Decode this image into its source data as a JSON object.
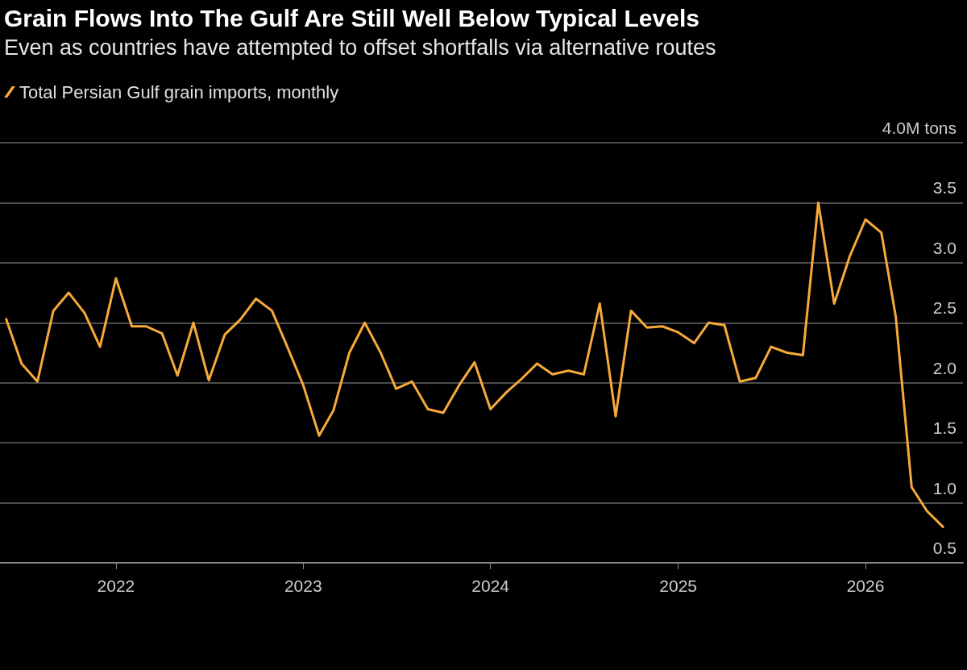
{
  "chart_data": {
    "type": "line",
    "title": "Grain Flows Into The Gulf Are Still Well Below Typical Levels",
    "subtitle": "Even as countries have attempted to offset shortfalls via alternative routes",
    "x": [
      "2021-06",
      "2021-07",
      "2021-08",
      "2021-09",
      "2021-10",
      "2021-11",
      "2021-12",
      "2022-01",
      "2022-02",
      "2022-03",
      "2022-04",
      "2022-05",
      "2022-06",
      "2022-07",
      "2022-08",
      "2022-09",
      "2022-10",
      "2022-11",
      "2022-12",
      "2023-01",
      "2023-02",
      "2023-03",
      "2023-04",
      "2023-05",
      "2023-06",
      "2023-07",
      "2023-08",
      "2023-09",
      "2023-10",
      "2023-11",
      "2023-12",
      "2024-01",
      "2024-02",
      "2024-03",
      "2024-04",
      "2024-05",
      "2024-06",
      "2024-07",
      "2024-08",
      "2024-09",
      "2024-10",
      "2024-11",
      "2024-12",
      "2025-01",
      "2025-02",
      "2025-03",
      "2025-04",
      "2025-05",
      "2025-06",
      "2025-07",
      "2025-08",
      "2025-09",
      "2025-10",
      "2025-11",
      "2025-12",
      "2026-01",
      "2026-02",
      "2026-03",
      "2026-04",
      "2026-05",
      "2026-06"
    ],
    "series": [
      {
        "name": "Total Persian Gulf grain imports, monthly",
        "color": "#f7a93b",
        "values": [
          2.53,
          2.16,
          2.01,
          2.6,
          2.75,
          2.58,
          2.3,
          2.87,
          2.47,
          2.47,
          2.41,
          2.06,
          2.5,
          2.02,
          2.4,
          2.53,
          2.7,
          2.6,
          2.3,
          1.98,
          1.56,
          1.77,
          2.25,
          2.5,
          2.25,
          1.95,
          2.01,
          1.78,
          1.75,
          1.98,
          2.17,
          1.78,
          1.92,
          2.03,
          2.16,
          2.07,
          2.1,
          2.07,
          2.66,
          1.72,
          2.6,
          2.46,
          2.47,
          2.42,
          2.33,
          2.5,
          2.48,
          2.01,
          2.04,
          2.3,
          2.25,
          2.23,
          3.5,
          2.66,
          3.05,
          3.36,
          3.25,
          2.55,
          1.13,
          0.93,
          0.8
        ]
      }
    ],
    "xlim": [
      "2021-05-20",
      "2026-07-10"
    ],
    "xticks": [
      {
        "value": "2022-01",
        "label": "2022"
      },
      {
        "value": "2023-01",
        "label": "2023"
      },
      {
        "value": "2024-01",
        "label": "2024"
      },
      {
        "value": "2025-01",
        "label": "2025"
      },
      {
        "value": "2026-01",
        "label": "2026"
      }
    ],
    "ylim": [
      0.5,
      4.0
    ],
    "yticks": [
      {
        "value": 0.5,
        "label": "0.5"
      },
      {
        "value": 1.0,
        "label": "1.0"
      },
      {
        "value": 1.5,
        "label": "1.5"
      },
      {
        "value": 2.0,
        "label": "2.0"
      },
      {
        "value": 2.5,
        "label": "2.5"
      },
      {
        "value": 3.0,
        "label": "3.0"
      },
      {
        "value": 3.5,
        "label": "3.5"
      },
      {
        "value": 4.0,
        "label": "4.0M tons"
      }
    ],
    "grid": "y",
    "legend": "top left",
    "marker": "none",
    "line_style": "solid"
  }
}
